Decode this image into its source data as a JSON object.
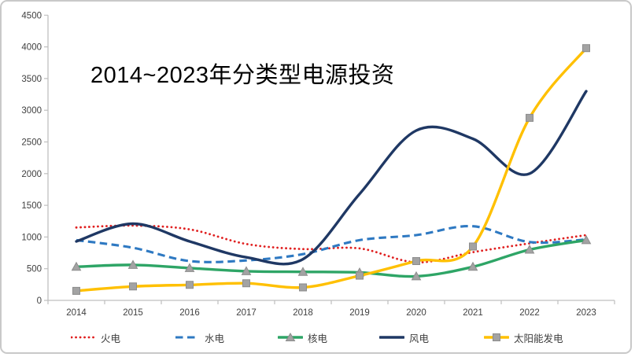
{
  "frame": {
    "background": "#ffffff",
    "border_color": "#c9c9c9"
  },
  "chart_data": {
    "type": "line",
    "title": "2014~2023年分类型电源投资",
    "categories": [
      "2014",
      "2015",
      "2016",
      "2017",
      "2018",
      "2019",
      "2020",
      "2021",
      "2022",
      "2023"
    ],
    "ylim": [
      0,
      4500
    ],
    "ytick_step": 500,
    "yticks": [
      "0",
      "500",
      "1000",
      "1500",
      "2000",
      "2500",
      "3000",
      "3500",
      "4000",
      "4500"
    ],
    "grid": false,
    "legend_position": "bottom",
    "axis_color": "#bfbfbf",
    "label_color": "#404040",
    "marker_fill": "#a3a3a3",
    "marker_stroke": "#8c8c8c",
    "series": [
      {
        "key": "thermal",
        "name": "火电",
        "color": "#e02020",
        "style": "dotted",
        "marker": "none",
        "values": [
          1150,
          1180,
          1120,
          890,
          810,
          820,
          600,
          760,
          900,
          1030
        ]
      },
      {
        "key": "hydro",
        "name": "水电",
        "color": "#2e79c2",
        "style": "dashed",
        "marker": "none",
        "values": [
          950,
          830,
          620,
          630,
          730,
          950,
          1030,
          1170,
          920,
          960
        ]
      },
      {
        "key": "nuclear",
        "name": "核电",
        "color": "#2ea566",
        "style": "solid",
        "marker": "triangle",
        "values": [
          530,
          560,
          510,
          460,
          450,
          440,
          380,
          530,
          800,
          950
        ]
      },
      {
        "key": "wind",
        "name": "风电",
        "color": "#1f3864",
        "style": "solid",
        "marker": "none",
        "values": [
          930,
          1210,
          930,
          680,
          650,
          1680,
          2680,
          2550,
          2000,
          3300
        ]
      },
      {
        "key": "solar",
        "name": "太阳能发电",
        "color": "#ffc000",
        "style": "solid",
        "marker": "square",
        "values": [
          150,
          220,
          245,
          270,
          205,
          390,
          620,
          850,
          2880,
          3980
        ]
      }
    ]
  }
}
